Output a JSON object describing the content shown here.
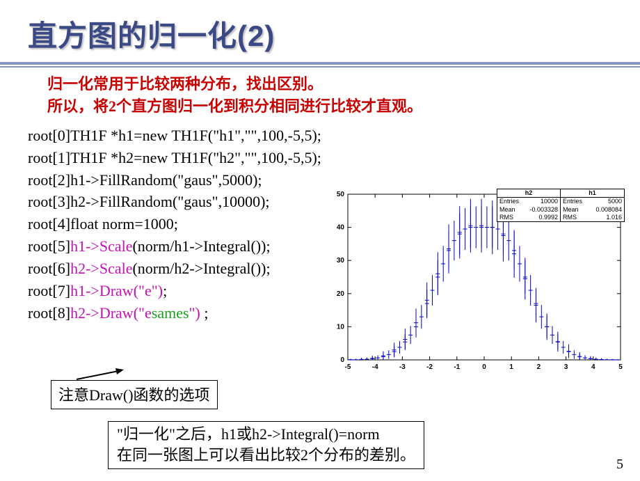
{
  "title": "直方图的归一化(2)",
  "intro": {
    "line1": "归一化常用于比较两种分布，找出区别。",
    "line2_a": "所以，将",
    "line2_bold": "2",
    "line2_b": "个直方图归一化到积分相同进行比较才直观。"
  },
  "code": {
    "l0": {
      "prefix": "root[0]",
      "body": "TH1F *h1=new TH1F(\"h1\",\"\",100,-5,5);"
    },
    "l1": {
      "prefix": "root[1]",
      "body": "TH1F *h2=new TH1F(\"h2\",\"\",100,-5,5);"
    },
    "l2": {
      "prefix": "root[2]",
      "body": "h1->FillRandom(\"gaus\",5000);"
    },
    "l3": {
      "prefix": "root[3]",
      "body": "h2->FillRandom(\"gaus\",10000);"
    },
    "l4": {
      "prefix": "root[4]",
      "body": "float norm=1000;"
    },
    "l5": {
      "prefix": "root[5]",
      "call": "h1->Scale",
      "arg": "(norm/h1->Integral());"
    },
    "l6": {
      "prefix": "root[6]",
      "call": "h2->Scale",
      "arg": "(norm/h2->Integral());"
    },
    "l7": {
      "prefix": "root[7]",
      "call": "h1->Draw(\"e\")",
      "tail": ";"
    },
    "l8": {
      "prefix": "root[8]",
      "call_a": "h2->Draw(\"e",
      "call_b": "sames",
      "call_c": "\")",
      "tail": " ;"
    }
  },
  "note1": "注意Draw()函数的选项",
  "note2": {
    "l1": "\"归一化\"之后，h1或h2->Integral()=norm",
    "l2": "在同一张图上可以看出比较2个分布的差别。"
  },
  "pagenum": "5",
  "chart": {
    "plot_bg": "#ffffff",
    "axis_color": "#000000",
    "tick_fontsize": 10,
    "x": {
      "min": -5,
      "max": 5,
      "ticks": [
        -5,
        -4,
        -3,
        -2,
        -1,
        0,
        1,
        2,
        3,
        4,
        5
      ]
    },
    "y": {
      "min": 0,
      "max": 50,
      "ticks": [
        0,
        10,
        20,
        30,
        40,
        50
      ]
    },
    "series_h2": {
      "color": "#0000cc",
      "marker": "+",
      "x": [
        -4.9,
        -4.7,
        -4.5,
        -4.3,
        -4.1,
        -3.9,
        -3.7,
        -3.5,
        -3.3,
        -3.1,
        -2.9,
        -2.7,
        -2.5,
        -2.3,
        -2.1,
        -1.9,
        -1.7,
        -1.5,
        -1.3,
        -1.1,
        -0.9,
        -0.7,
        -0.5,
        -0.3,
        -0.1,
        0.1,
        0.3,
        0.5,
        0.7,
        0.9,
        1.1,
        1.3,
        1.5,
        1.7,
        1.9,
        2.1,
        2.3,
        2.5,
        2.7,
        2.9,
        3.1,
        3.3,
        3.5,
        3.7,
        3.9,
        4.1,
        4.3,
        4.5,
        4.7,
        4.9
      ],
      "y": [
        0.03,
        0.05,
        0.1,
        0.2,
        0.35,
        0.6,
        1.0,
        1.6,
        2.5,
        3.8,
        5.4,
        7.5,
        10,
        13,
        17,
        21,
        25,
        29,
        33,
        36,
        38,
        39.5,
        40,
        40,
        40,
        40,
        40,
        39.5,
        38,
        36,
        33,
        29,
        25,
        21,
        17,
        13,
        10,
        7.5,
        5.4,
        3.8,
        2.5,
        1.6,
        1.0,
        0.6,
        0.35,
        0.2,
        0.1,
        0.05,
        0.03,
        0.02
      ],
      "err": [
        0.2,
        0.3,
        0.4,
        0.5,
        0.6,
        0.8,
        1.0,
        1.3,
        1.6,
        1.9,
        2.3,
        2.7,
        3.2,
        3.6,
        4.1,
        4.6,
        5.0,
        5.4,
        5.7,
        6.0,
        6.2,
        6.3,
        6.3,
        6.3,
        6.3,
        6.3,
        6.3,
        6.3,
        6.2,
        6.0,
        5.7,
        5.4,
        5.0,
        4.6,
        4.1,
        3.6,
        3.2,
        2.7,
        2.3,
        1.9,
        1.6,
        1.3,
        1.0,
        0.8,
        0.6,
        0.5,
        0.4,
        0.3,
        0.2,
        0.2
      ]
    },
    "series_h1": {
      "color": "#0000cc",
      "marker": "+",
      "x": [
        -4.9,
        -4.5,
        -4.1,
        -3.7,
        -3.3,
        -2.9,
        -2.5,
        -2.1,
        -1.7,
        -1.3,
        -0.9,
        -0.5,
        -0.1,
        0.3,
        0.7,
        1.1,
        1.5,
        1.9,
        2.3,
        2.7,
        3.1,
        3.5,
        3.9,
        4.3,
        4.7
      ],
      "y": [
        0.04,
        0.15,
        0.45,
        1.2,
        3.0,
        6.2,
        11.2,
        18.0,
        26.0,
        33.5,
        38.5,
        40.5,
        40.5,
        40.0,
        37.5,
        32.0,
        24.5,
        16.5,
        10.0,
        5.5,
        2.6,
        1.0,
        0.35,
        0.1,
        0.03
      ],
      "err": [
        0.3,
        0.5,
        0.8,
        1.4,
        2.2,
        3.2,
        4.3,
        5.4,
        6.5,
        7.4,
        7.9,
        8.1,
        8.1,
        8.1,
        7.8,
        7.2,
        6.3,
        5.2,
        4.0,
        3.0,
        2.1,
        1.3,
        0.75,
        0.4,
        0.2
      ]
    },
    "stats": {
      "h2": {
        "title": "h2",
        "entries": "10000",
        "mean": "-0.003328",
        "rms": "0.9992"
      },
      "h1": {
        "title": "h1",
        "entries": "5000",
        "mean": "0.008084",
        "rms": "1.016"
      }
    }
  }
}
